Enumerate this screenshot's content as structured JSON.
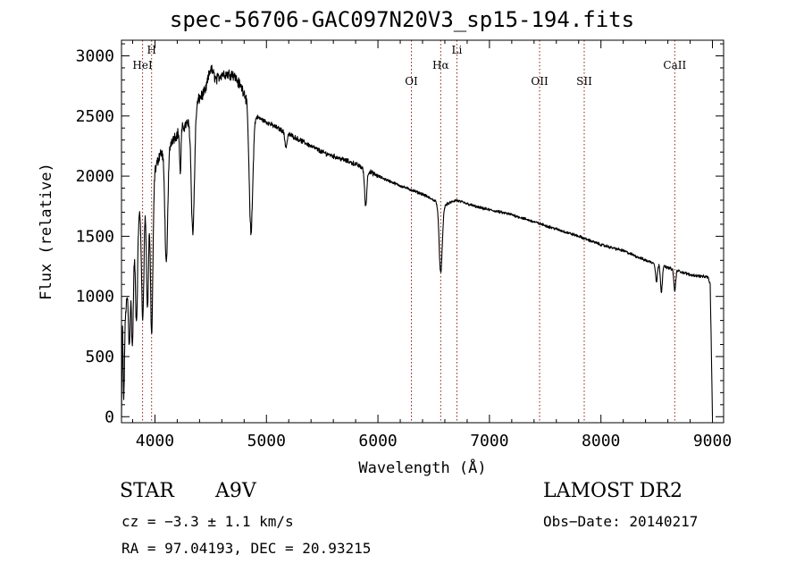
{
  "chart_data": {
    "type": "line",
    "title": "spec-56706-GAC097N20V3_sp15-194.fits",
    "xlabel": "Wavelength (Å)",
    "ylabel": "Flux (relative)",
    "xlim": [
      3700,
      9100
    ],
    "ylim": [
      -50,
      3130
    ],
    "x_ticks": [
      4000,
      5000,
      6000,
      7000,
      8000,
      9000
    ],
    "y_ticks": [
      0,
      500,
      1000,
      1500,
      2000,
      2500,
      3000
    ],
    "grid": false,
    "line_color": "#000000",
    "marker_color": "#8b1a1a",
    "spectrum": {
      "continuum_points": [
        [
          3700,
          0
        ],
        [
          3710,
          900
        ],
        [
          3730,
          800
        ],
        [
          3760,
          1100
        ],
        [
          3800,
          1300
        ],
        [
          3850,
          1650
        ],
        [
          3880,
          1800
        ],
        [
          3900,
          1700
        ],
        [
          3930,
          1900
        ],
        [
          3980,
          1750
        ],
        [
          4000,
          2050
        ],
        [
          4050,
          2200
        ],
        [
          4100,
          2150
        ],
        [
          4150,
          2300
        ],
        [
          4200,
          2350
        ],
        [
          4300,
          2450
        ],
        [
          4400,
          2650
        ],
        [
          4450,
          2700
        ],
        [
          4500,
          2900
        ],
        [
          4550,
          2800
        ],
        [
          4600,
          2850
        ],
        [
          4700,
          2850
        ],
        [
          4800,
          2700
        ],
        [
          4900,
          2500
        ],
        [
          5000,
          2450
        ],
        [
          5200,
          2350
        ],
        [
          5500,
          2200
        ],
        [
          5800,
          2100
        ],
        [
          6000,
          2000
        ],
        [
          6200,
          1920
        ],
        [
          6400,
          1850
        ],
        [
          6500,
          1800
        ],
        [
          6600,
          1760
        ],
        [
          6700,
          1800
        ],
        [
          6900,
          1740
        ],
        [
          7200,
          1680
        ],
        [
          7500,
          1590
        ],
        [
          7800,
          1500
        ],
        [
          8000,
          1430
        ],
        [
          8200,
          1380
        ],
        [
          8400,
          1300
        ],
        [
          8600,
          1240
        ],
        [
          8800,
          1180
        ],
        [
          8960,
          1160
        ],
        [
          8980,
          1100
        ],
        [
          9000,
          0
        ]
      ],
      "absorption_lines": [
        {
          "wavelength": 3720,
          "depth": 700,
          "width": 6
        },
        {
          "wavelength": 3770,
          "depth": 550,
          "width": 8
        },
        {
          "wavelength": 3798,
          "depth": 700,
          "width": 8
        },
        {
          "wavelength": 3835,
          "depth": 750,
          "width": 9
        },
        {
          "wavelength": 3889,
          "depth": 950,
          "width": 10
        },
        {
          "wavelength": 3933,
          "depth": 1000,
          "width": 9
        },
        {
          "wavelength": 3970,
          "depth": 1100,
          "width": 10
        },
        {
          "wavelength": 4102,
          "depth": 900,
          "width": 12
        },
        {
          "wavelength": 4227,
          "depth": 350,
          "width": 6
        },
        {
          "wavelength": 4340,
          "depth": 1000,
          "width": 14
        },
        {
          "wavelength": 4861,
          "depth": 1050,
          "width": 16
        },
        {
          "wavelength": 5175,
          "depth": 120,
          "width": 10
        },
        {
          "wavelength": 5890,
          "depth": 300,
          "width": 10
        },
        {
          "wavelength": 6563,
          "depth": 580,
          "width": 14
        },
        {
          "wavelength": 8498,
          "depth": 150,
          "width": 8
        },
        {
          "wavelength": 8542,
          "depth": 220,
          "width": 8
        },
        {
          "wavelength": 8662,
          "depth": 180,
          "width": 8
        }
      ]
    },
    "line_markers": [
      {
        "label": "HeI",
        "wavelength": 3889,
        "label_level": 1
      },
      {
        "label": "H",
        "wavelength": 3970,
        "label_level": 0
      },
      {
        "label": "OI",
        "wavelength": 6300,
        "label_level": 2
      },
      {
        "label": "Hα",
        "wavelength": 6563,
        "label_level": 1
      },
      {
        "label": "Li",
        "wavelength": 6708,
        "label_level": 0
      },
      {
        "label": "OII",
        "wavelength": 7450,
        "label_level": 2
      },
      {
        "label": "SII",
        "wavelength": 7850,
        "label_level": 2
      },
      {
        "label": "CaII",
        "wavelength": 8662,
        "label_level": 1
      }
    ]
  },
  "footer": {
    "object_type": "STAR",
    "subclass": "A9V",
    "survey": "LAMOST DR2",
    "cz": "cz = −3.3 ± 1.1 km/s",
    "obs_date": "Obs−Date: 20140217",
    "ra_dec": "RA =  97.04193, DEC =  20.93215"
  }
}
